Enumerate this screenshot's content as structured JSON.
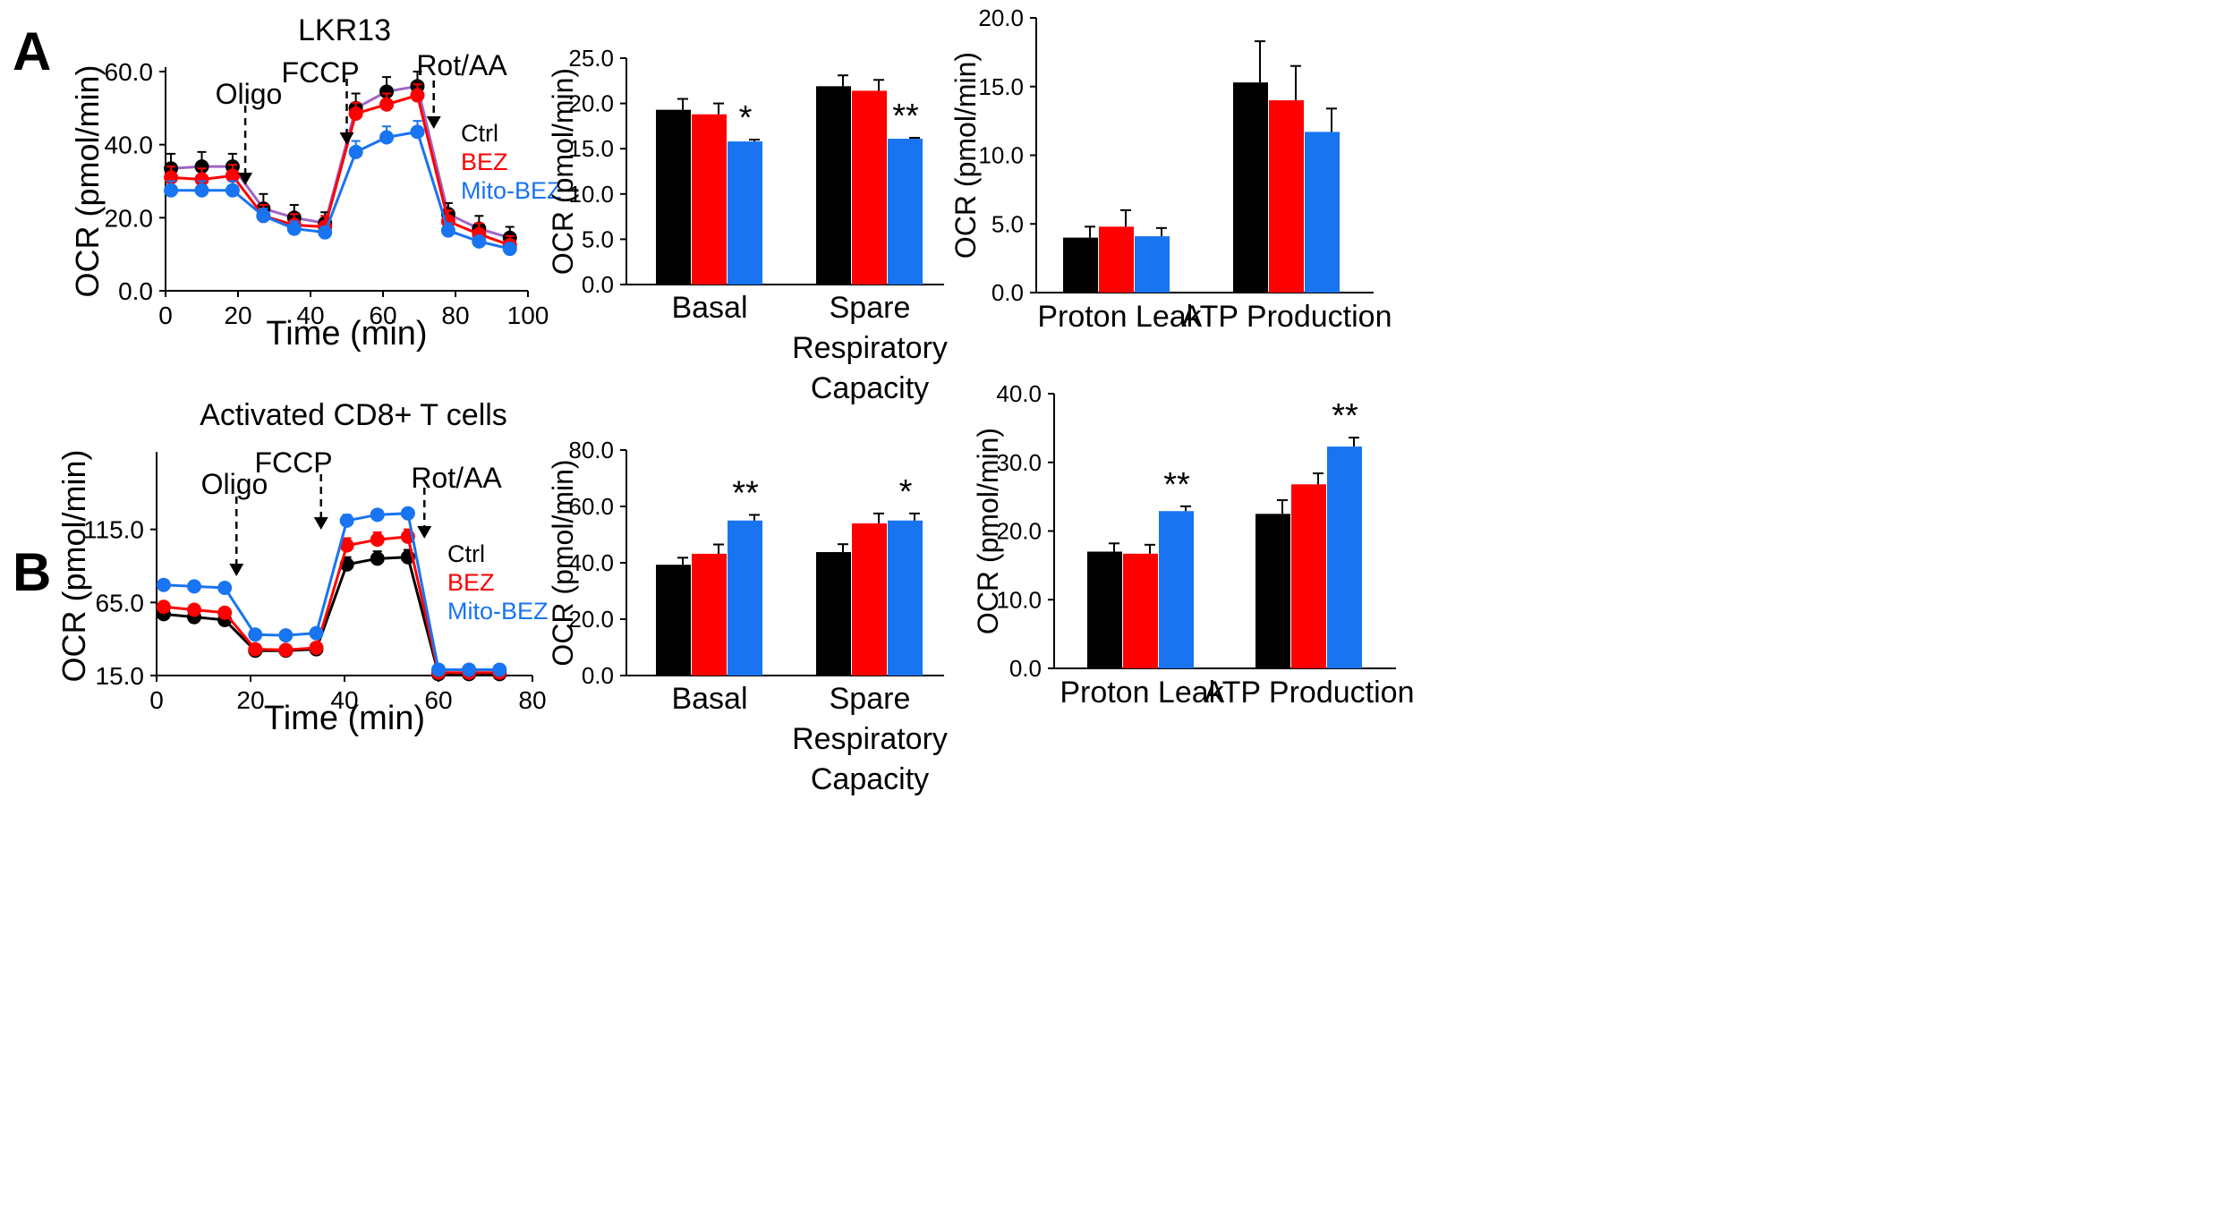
{
  "colors": {
    "ctrl": "#000000",
    "bez": "#ff0000",
    "mitobez": "#1874f0",
    "ctrl_line_A": "#a064c8"
  },
  "panel_labels": [
    "A",
    "B"
  ],
  "chart_data": [
    {
      "id": "A_timecourse",
      "type": "line",
      "title": "LKR13",
      "xlabel": "Time (min)",
      "ylabel": "OCR (pmol/min)",
      "xlim": [
        0,
        100
      ],
      "ylim": [
        0,
        60
      ],
      "xticks": [
        0,
        20,
        40,
        60,
        80,
        100
      ],
      "yticks": [
        0,
        20,
        40,
        60
      ],
      "ytick_labels": [
        "0.0",
        "20.0",
        "40.0",
        "60.0"
      ],
      "x": [
        1.5,
        10,
        18.5,
        27,
        35.5,
        44,
        52.5,
        61,
        69.5,
        78,
        86.5,
        95
      ],
      "series": [
        {
          "name": "Ctrl",
          "values": [
            33.5,
            34,
            34,
            22.5,
            20,
            18.5,
            50,
            54.5,
            56,
            21,
            17,
            14.5
          ],
          "errors": [
            4,
            4,
            3.5,
            4,
            3.5,
            3,
            4,
            4,
            4,
            3,
            3.5,
            3
          ]
        },
        {
          "name": "BEZ",
          "values": [
            31,
            30.5,
            31.5,
            20.5,
            18,
            17.5,
            48.5,
            51,
            53.5,
            19,
            15.5,
            12.5
          ],
          "errors": [
            3,
            3,
            3,
            3,
            3,
            3,
            3,
            3,
            3,
            3,
            3,
            2.5
          ]
        },
        {
          "name": "Mito-BEZ",
          "values": [
            27.5,
            27.5,
            27.5,
            20.5,
            17,
            16,
            38,
            42,
            43.5,
            16.5,
            13.5,
            11.5
          ],
          "errors": [
            2.5,
            2.5,
            2.5,
            2,
            2,
            1.5,
            3,
            3,
            3,
            2,
            1.5,
            1.5
          ]
        }
      ],
      "annotations": [
        "Oligo",
        "FCCP",
        "Rot/AA"
      ],
      "legend": [
        "Ctrl",
        "BEZ",
        "Mito-BEZ"
      ]
    },
    {
      "id": "A_basal_spare",
      "type": "bar",
      "ylabel": "OCR (pmol/min)",
      "ylim": [
        0,
        25
      ],
      "yticks": [
        0,
        5,
        10,
        15,
        20,
        25
      ],
      "ytick_labels": [
        "0.0",
        "5.0",
        "10.0",
        "15.0",
        "20.0",
        "25.0"
      ],
      "categories": [
        "Basal",
        "Spare Respiratory Capacity"
      ],
      "series": [
        {
          "name": "Ctrl",
          "values": [
            19.3,
            21.9
          ],
          "errors": [
            1.2,
            1.2
          ]
        },
        {
          "name": "BEZ",
          "values": [
            18.8,
            21.4
          ],
          "errors": [
            1.2,
            1.2
          ]
        },
        {
          "name": "Mito-BEZ",
          "values": [
            15.8,
            16.1
          ],
          "errors": [
            0.2,
            0.1
          ]
        }
      ],
      "significance": [
        [
          "",
          "",
          "*"
        ],
        [
          "",
          "",
          "**"
        ]
      ]
    },
    {
      "id": "A_leak_atp",
      "type": "bar",
      "ylabel": "OCR (pmol/min)",
      "ylim": [
        0,
        20
      ],
      "yticks": [
        0,
        5,
        10,
        15,
        20
      ],
      "ytick_labels": [
        "0.0",
        "5.0",
        "10.0",
        "15.0",
        "20.0"
      ],
      "categories": [
        "Proton Leak",
        "ATP Production"
      ],
      "series": [
        {
          "name": "Ctrl",
          "values": [
            4.0,
            15.3
          ],
          "errors": [
            0.8,
            3.0
          ]
        },
        {
          "name": "BEZ",
          "values": [
            4.8,
            14.0
          ],
          "errors": [
            1.2,
            2.5
          ]
        },
        {
          "name": "Mito-BEZ",
          "values": [
            4.1,
            11.7
          ],
          "errors": [
            0.6,
            1.7
          ]
        }
      ],
      "significance": [
        [
          "",
          "",
          ""
        ],
        [
          "",
          "",
          ""
        ]
      ]
    },
    {
      "id": "B_timecourse",
      "type": "line",
      "title": "Activated CD8+ T cells",
      "xlabel": "Time (min)",
      "ylabel": "OCR (pmol/min)",
      "xlim": [
        0,
        80
      ],
      "ylim": [
        15,
        165
      ],
      "xticks": [
        0,
        20,
        40,
        60,
        80
      ],
      "yticks": [
        15,
        65,
        115
      ],
      "ytick_labels": [
        "15.0",
        "65.0",
        "115.0"
      ],
      "x": [
        1.5,
        8,
        14.5,
        21,
        27.5,
        34,
        40.5,
        47,
        53.5,
        60,
        66.5,
        73
      ],
      "series": [
        {
          "name": "Ctrl",
          "values": [
            57,
            55,
            53,
            32,
            32,
            33,
            91,
            95,
            96,
            16,
            16,
            16
          ],
          "errors": [
            3,
            3,
            3,
            2,
            2,
            2,
            5,
            5,
            5,
            2,
            2,
            2
          ]
        },
        {
          "name": "BEZ",
          "values": [
            62,
            60,
            58,
            33,
            32.5,
            34,
            104,
            108,
            110,
            17,
            17,
            17
          ],
          "errors": [
            3,
            3,
            3,
            2,
            2,
            2,
            5,
            5,
            5,
            2,
            2,
            2
          ]
        },
        {
          "name": "Mito-BEZ",
          "values": [
            77,
            76,
            75,
            43,
            42.5,
            44,
            121,
            125,
            126,
            19,
            19,
            19
          ],
          "errors": [
            2,
            2,
            2,
            2,
            2,
            2,
            4,
            3,
            3,
            1.5,
            1.5,
            1.5
          ]
        }
      ],
      "annotations": [
        "Oligo",
        "FCCP",
        "Rot/AA"
      ],
      "legend": [
        "Ctrl",
        "BEZ",
        "Mito-BEZ"
      ]
    },
    {
      "id": "B_basal_spare",
      "type": "bar",
      "ylabel": "OCR (pmol/min)",
      "ylim": [
        0,
        80
      ],
      "yticks": [
        0,
        20,
        40,
        60,
        80
      ],
      "ytick_labels": [
        "0.0",
        "20.0",
        "40.0",
        "60.0",
        "80.0"
      ],
      "categories": [
        "Basal",
        "Spare Respiratory Capacity"
      ],
      "series": [
        {
          "name": "Ctrl",
          "values": [
            39.3,
            43.8
          ],
          "errors": [
            2.5,
            2.8
          ]
        },
        {
          "name": "BEZ",
          "values": [
            43.2,
            54.0
          ],
          "errors": [
            3.3,
            3.5
          ]
        },
        {
          "name": "Mito-BEZ",
          "values": [
            55.0,
            55.0
          ],
          "errors": [
            2.0,
            2.5
          ]
        }
      ],
      "significance": [
        [
          "",
          "",
          "**"
        ],
        [
          "",
          "",
          "*"
        ]
      ]
    },
    {
      "id": "B_leak_atp",
      "type": "bar",
      "ylabel": "OCR (pmol/min)",
      "ylim": [
        0,
        40
      ],
      "yticks": [
        0,
        10,
        20,
        30,
        40
      ],
      "ytick_labels": [
        "0.0",
        "10.0",
        "20.0",
        "30.0",
        "40.0"
      ],
      "categories": [
        "Proton Leak",
        "ATP Production"
      ],
      "series": [
        {
          "name": "Ctrl",
          "values": [
            17.0,
            22.5
          ],
          "errors": [
            1.2,
            2.0
          ]
        },
        {
          "name": "BEZ",
          "values": [
            16.7,
            26.8
          ],
          "errors": [
            1.3,
            1.6
          ]
        },
        {
          "name": "Mito-BEZ",
          "values": [
            22.9,
            32.3
          ],
          "errors": [
            0.7,
            1.3
          ]
        }
      ],
      "significance": [
        [
          "",
          "",
          "**"
        ],
        [
          "",
          "",
          "**"
        ]
      ]
    }
  ]
}
